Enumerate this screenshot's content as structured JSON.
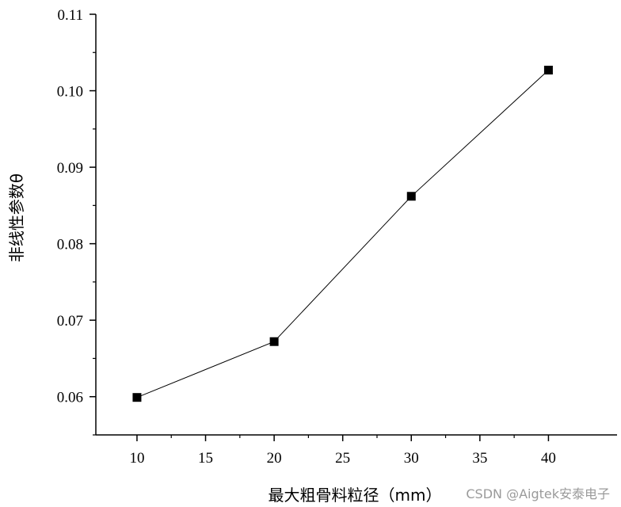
{
  "chart_data": {
    "type": "line",
    "xlabel": "最大粗骨料粒径（mm）",
    "ylabel": "非线性参数θ",
    "xlim": [
      7,
      45
    ],
    "ylim": [
      0.055,
      0.11
    ],
    "x_ticks": [
      "10",
      "15",
      "20",
      "25",
      "30",
      "35",
      "40"
    ],
    "y_ticks": [
      "0.06",
      "0.07",
      "0.08",
      "0.09",
      "0.10",
      "0.11"
    ],
    "series": [
      {
        "x": [
          10,
          20,
          30,
          40
        ],
        "values": [
          0.0599,
          0.0672,
          0.0862,
          0.1027
        ],
        "marker": "square",
        "color": "#000000"
      }
    ],
    "grid": false
  },
  "watermark": "CSDN @Aigtek安泰电子"
}
